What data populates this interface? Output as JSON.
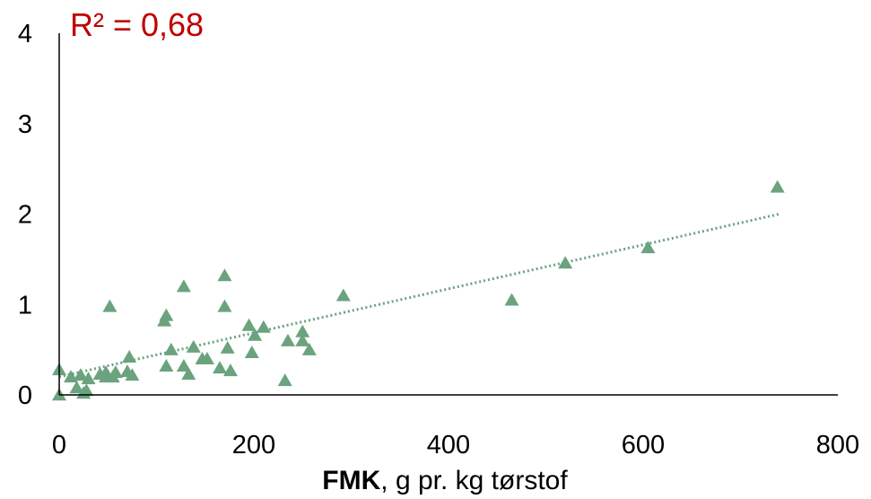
{
  "chart_data": {
    "type": "scatter",
    "r2_label": "R² = 0,68",
    "xlabel_bold": "FMK",
    "xlabel_rest": ", g pr. kg tørstof",
    "ylabel": "",
    "xlim": [
      0,
      800
    ],
    "ylim": [
      0,
      4
    ],
    "xticks": [
      0,
      200,
      400,
      600,
      800
    ],
    "yticks": [
      0,
      1,
      2,
      3,
      4
    ],
    "grid": false,
    "trendline": {
      "type": "linear",
      "x0": 0,
      "x1": 740,
      "y0": 0.2,
      "y1": 2.0,
      "style": "dotted"
    },
    "colors": {
      "points": "#6aa37e",
      "trendline": "#6aa37e",
      "r2_text": "#c00000",
      "axis": "#000000"
    },
    "series": [
      {
        "points": [
          [
            0,
            0.28
          ],
          [
            0,
            0.0
          ],
          [
            12,
            0.2
          ],
          [
            18,
            0.08
          ],
          [
            22,
            0.22
          ],
          [
            25,
            0.02
          ],
          [
            28,
            0.05
          ],
          [
            30,
            0.18
          ],
          [
            42,
            0.23
          ],
          [
            48,
            0.2
          ],
          [
            48,
            0.25
          ],
          [
            52,
            0.98
          ],
          [
            55,
            0.2
          ],
          [
            58,
            0.25
          ],
          [
            70,
            0.26
          ],
          [
            72,
            0.42
          ],
          [
            75,
            0.22
          ],
          [
            108,
            0.82
          ],
          [
            110,
            0.88
          ],
          [
            110,
            0.32
          ],
          [
            115,
            0.5
          ],
          [
            128,
            1.2
          ],
          [
            128,
            0.32
          ],
          [
            133,
            0.23
          ],
          [
            138,
            0.53
          ],
          [
            147,
            0.4
          ],
          [
            152,
            0.4
          ],
          [
            165,
            0.3
          ],
          [
            170,
            0.98
          ],
          [
            170,
            1.32
          ],
          [
            173,
            0.52
          ],
          [
            176,
            0.27
          ],
          [
            195,
            0.77
          ],
          [
            198,
            0.47
          ],
          [
            201,
            0.66
          ],
          [
            210,
            0.75
          ],
          [
            232,
            0.16
          ],
          [
            235,
            0.6
          ],
          [
            250,
            0.6
          ],
          [
            250,
            0.7
          ],
          [
            257,
            0.5
          ],
          [
            292,
            1.1
          ],
          [
            465,
            1.05
          ],
          [
            520,
            1.46
          ],
          [
            605,
            1.63
          ],
          [
            738,
            2.3
          ]
        ]
      }
    ]
  }
}
